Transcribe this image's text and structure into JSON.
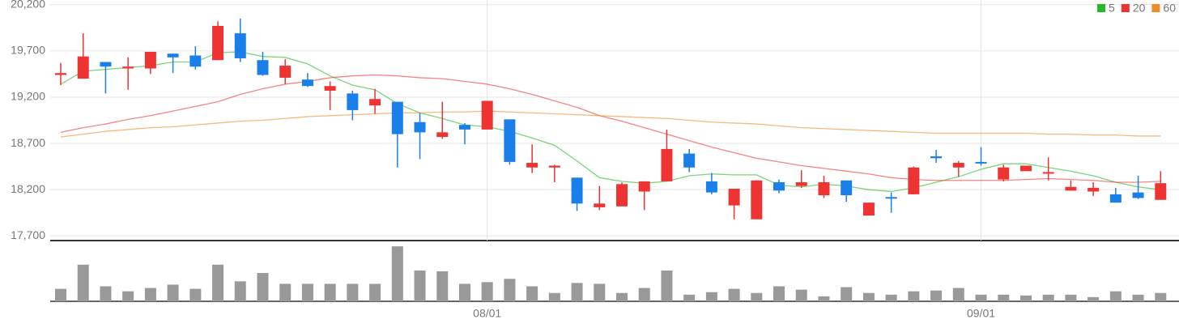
{
  "chart_data": {
    "type": "candlestick",
    "categories": [
      null,
      null,
      null,
      null,
      null,
      null,
      null,
      null,
      null,
      null,
      null,
      null,
      null,
      null,
      null,
      null,
      null,
      null,
      null,
      "08/01",
      null,
      null,
      null,
      null,
      null,
      null,
      null,
      null,
      null,
      null,
      null,
      null,
      null,
      null,
      null,
      null,
      null,
      null,
      null,
      null,
      null,
      "09/01",
      null,
      null,
      null,
      null,
      null,
      null,
      null,
      null
    ],
    "open": [
      19440,
      19400,
      19580,
      19510,
      19510,
      19670,
      19650,
      19600,
      19890,
      19600,
      19410,
      19390,
      19270,
      19240,
      19110,
      19150,
      18930,
      18770,
      18900,
      18850,
      18960,
      18440,
      18440,
      18330,
      18010,
      18020,
      18180,
      18290,
      18590,
      18290,
      18030,
      17880,
      18280,
      18240,
      18140,
      18300,
      17920,
      18120,
      18150,
      18560,
      18440,
      18500,
      18310,
      18400,
      18380,
      18190,
      18180,
      18150,
      18170,
      18090
    ],
    "high": [
      19570,
      19890,
      19580,
      19630,
      19690,
      19670,
      19750,
      20020,
      20050,
      19690,
      19610,
      19460,
      19370,
      19270,
      19290,
      19150,
      19030,
      19150,
      18920,
      19160,
      18960,
      18690,
      18470,
      18330,
      18240,
      18280,
      18290,
      18850,
      18640,
      18380,
      18210,
      18300,
      18310,
      18410,
      18350,
      18300,
      18060,
      18170,
      18450,
      18630,
      18510,
      18660,
      18470,
      18460,
      18550,
      18300,
      18280,
      18220,
      18350,
      18400
    ],
    "low": [
      19330,
      19400,
      19240,
      19280,
      19450,
      19460,
      19500,
      19600,
      19580,
      19430,
      19340,
      19310,
      19060,
      18950,
      19020,
      18440,
      18530,
      18750,
      18690,
      18850,
      18470,
      18380,
      18280,
      17970,
      17980,
      18020,
      17980,
      18290,
      18390,
      18150,
      17880,
      17880,
      18160,
      18220,
      18110,
      18070,
      17920,
      17950,
      18150,
      18490,
      18340,
      18460,
      18290,
      18400,
      18300,
      18190,
      18130,
      18060,
      18100,
      18090
    ],
    "close": [
      19460,
      19640,
      19530,
      19530,
      19690,
      19630,
      19530,
      19970,
      19620,
      19440,
      19540,
      19320,
      19320,
      19060,
      19180,
      18800,
      18820,
      18820,
      18850,
      19160,
      18500,
      18490,
      18460,
      18050,
      18050,
      18260,
      18290,
      18640,
      18440,
      18170,
      18210,
      18300,
      18190,
      18280,
      18280,
      18140,
      18060,
      18110,
      18440,
      18540,
      18490,
      18490,
      18440,
      18460,
      18390,
      18230,
      18220,
      18060,
      18110,
      18270
    ],
    "up_color": "#ee3333",
    "down_color": "#1a7fe8",
    "series": [
      {
        "name": "5",
        "color": "#22bb22",
        "values": [
          19340,
          19480,
          19500,
          19520,
          19540,
          19580,
          19580,
          19680,
          19690,
          19640,
          19630,
          19560,
          19430,
          19330,
          19280,
          19130,
          19030,
          18970,
          18900,
          18880,
          18830,
          18760,
          18680,
          18510,
          18330,
          18290,
          18270,
          18290,
          18350,
          18370,
          18360,
          18360,
          18250,
          18230,
          18260,
          18240,
          18200,
          18180,
          18220,
          18280,
          18340,
          18420,
          18480,
          18480,
          18440,
          18400,
          18350,
          18280,
          18230,
          18200
        ]
      },
      {
        "name": "20",
        "color": "#ee3333",
        "values": [
          18820,
          18870,
          18910,
          18960,
          19000,
          19050,
          19100,
          19150,
          19230,
          19290,
          19340,
          19370,
          19410,
          19430,
          19440,
          19430,
          19410,
          19400,
          19370,
          19340,
          19290,
          19230,
          19160,
          19090,
          19000,
          18940,
          18870,
          18800,
          18730,
          18660,
          18600,
          18540,
          18500,
          18460,
          18430,
          18400,
          18370,
          18330,
          18310,
          18300,
          18300,
          18300,
          18300,
          18310,
          18320,
          18310,
          18300,
          18280,
          18280,
          18290
        ]
      },
      {
        "name": "60",
        "color": "#f08c28",
        "values": [
          18770,
          18800,
          18830,
          18850,
          18870,
          18880,
          18900,
          18920,
          18940,
          18950,
          18970,
          18990,
          19000,
          19010,
          19020,
          19030,
          19030,
          19040,
          19040,
          19050,
          19040,
          19030,
          19020,
          19010,
          19000,
          18990,
          18980,
          18970,
          18950,
          18930,
          18920,
          18910,
          18890,
          18870,
          18860,
          18850,
          18840,
          18830,
          18820,
          18810,
          18810,
          18810,
          18810,
          18810,
          18800,
          18800,
          18790,
          18790,
          18780,
          18780
        ]
      }
    ],
    "volume": [
      15,
      44,
      18,
      12,
      16,
      20,
      15,
      44,
      24,
      34,
      21,
      21,
      21,
      21,
      21,
      66,
      37,
      36,
      21,
      23,
      27,
      18,
      10,
      22,
      21,
      10,
      16,
      37,
      8,
      11,
      15,
      10,
      18,
      14,
      6,
      17,
      10,
      8,
      12,
      13,
      16,
      8,
      8,
      7,
      8,
      8,
      5,
      12,
      8,
      10
    ],
    "volume_color": "#999999",
    "volume_ylim": [
      0,
      70
    ],
    "ylim": [
      17650,
      20250
    ],
    "yticks": [
      {
        "value": 17700,
        "label": "17,700"
      },
      {
        "value": 18200,
        "label": "18,200"
      },
      {
        "value": 18700,
        "label": "18,700"
      },
      {
        "value": 19200,
        "label": "19,200"
      },
      {
        "value": 19700,
        "label": "19,700"
      },
      {
        "value": 20200,
        "label": "20,200"
      }
    ],
    "grid": true,
    "legend": "top-right"
  }
}
